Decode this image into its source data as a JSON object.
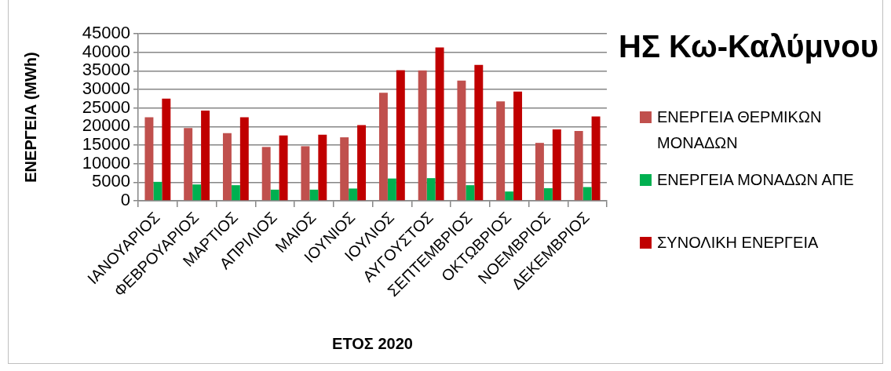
{
  "chart_data": {
    "type": "bar",
    "title": "ΗΣ Κω-Καλύμνου",
    "xlabel": "ΕΤΟΣ 2020",
    "ylabel": "ΕΝΕΡΓΕΙΑ (MWh)",
    "categories": [
      "ΙΑΝΟΥΑΡΙΟΣ",
      "ΦΕΒΡΟΥΑΡΙΟΣ",
      "ΜΑΡΤΙΟΣ",
      "ΑΠΡΙΛΙΟΣ",
      "ΜΑΙΟΣ",
      "ΙΟΥΝΙΟΣ",
      "ΙΟΥΛΙΟΣ",
      "ΑΥΓΟΥΣΤΟΣ",
      "ΣΕΠΤΕΜΒΡΙΟΣ",
      "ΟΚΤΩΒΡΙΟΣ",
      "ΝΟΕΜΒΡΙΟΣ",
      "ΔΕΚΕΜΒΡΙΟΣ"
    ],
    "series": [
      {
        "name": "ΕΝΕΡΓΕΙΑ ΘΕΡΜΙΚΩΝ ΜΟΝΑΔΩΝ",
        "color": "#c0504d",
        "values": [
          22500,
          19600,
          18200,
          14500,
          14700,
          17100,
          29100,
          35100,
          32400,
          26800,
          15600,
          18800
        ]
      },
      {
        "name": "ΕΝΕΡΓΕΙΑ ΜΟΝΑΔΩΝ ΑΠΕ",
        "color": "#00b050",
        "values": [
          5100,
          4400,
          4200,
          3000,
          3000,
          3300,
          6000,
          6100,
          4200,
          2500,
          3400,
          3700
        ]
      },
      {
        "name": "ΣΥΝΟΛΙΚΗ ΕΝΕΡΓΕΙΑ",
        "color": "#c00000",
        "values": [
          27500,
          24300,
          22500,
          17600,
          17800,
          20400,
          35200,
          41300,
          36600,
          29400,
          19200,
          22700
        ]
      }
    ],
    "ylim": [
      0,
      45000
    ],
    "yticks": [
      0,
      5000,
      10000,
      15000,
      20000,
      25000,
      30000,
      35000,
      40000,
      45000
    ],
    "grid": "y",
    "legend": "right"
  }
}
